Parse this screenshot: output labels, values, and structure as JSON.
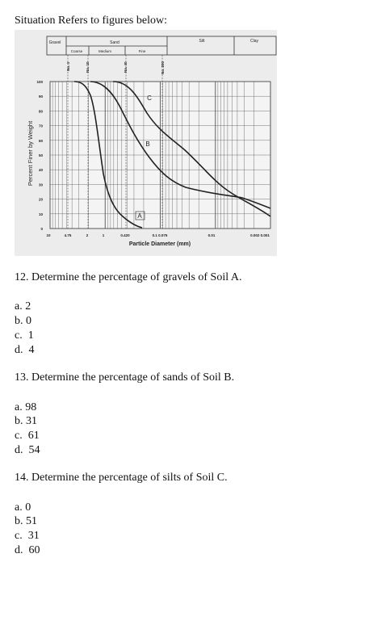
{
  "header": {
    "title": "Situation Refers to figures below:"
  },
  "figure": {
    "soil_classes": [
      "Gravel",
      "Sand",
      "Silt",
      "Clay"
    ],
    "sand_subclasses": [
      "Coarse",
      "Medium",
      "Fine"
    ],
    "sieves": [
      "No. 4",
      "No. 10",
      "No. 40",
      "No. 200"
    ],
    "y_axis_label": "Percent Finer by Weight",
    "y_ticks": [
      "0",
      "10",
      "20",
      "30",
      "40",
      "50",
      "60",
      "70",
      "80",
      "90",
      "100"
    ],
    "x_ticks": [
      "10",
      "4.75",
      "2",
      "1",
      "0.420",
      "0.1 0.075",
      "0.01",
      "0.002  0.001"
    ],
    "x_axis_label": "Particle Diameter (mm)",
    "curve_labels": [
      "A",
      "B",
      "C"
    ]
  },
  "questions": [
    {
      "prompt": "12. Determine the percentage of gravels of Soil A.",
      "options": [
        "a. 2",
        "b. 0",
        "c.  1",
        "d.  4"
      ]
    },
    {
      "prompt": "13. Determine the percentage of sands of Soil B.",
      "options": [
        "a. 98",
        "b. 31",
        "c.  61",
        "d.  54"
      ]
    },
    {
      "prompt": "14. Determine the percentage of silts of Soil C.",
      "options": [
        "a. 0",
        "b. 51",
        "c.  31",
        "d.  60"
      ]
    }
  ]
}
